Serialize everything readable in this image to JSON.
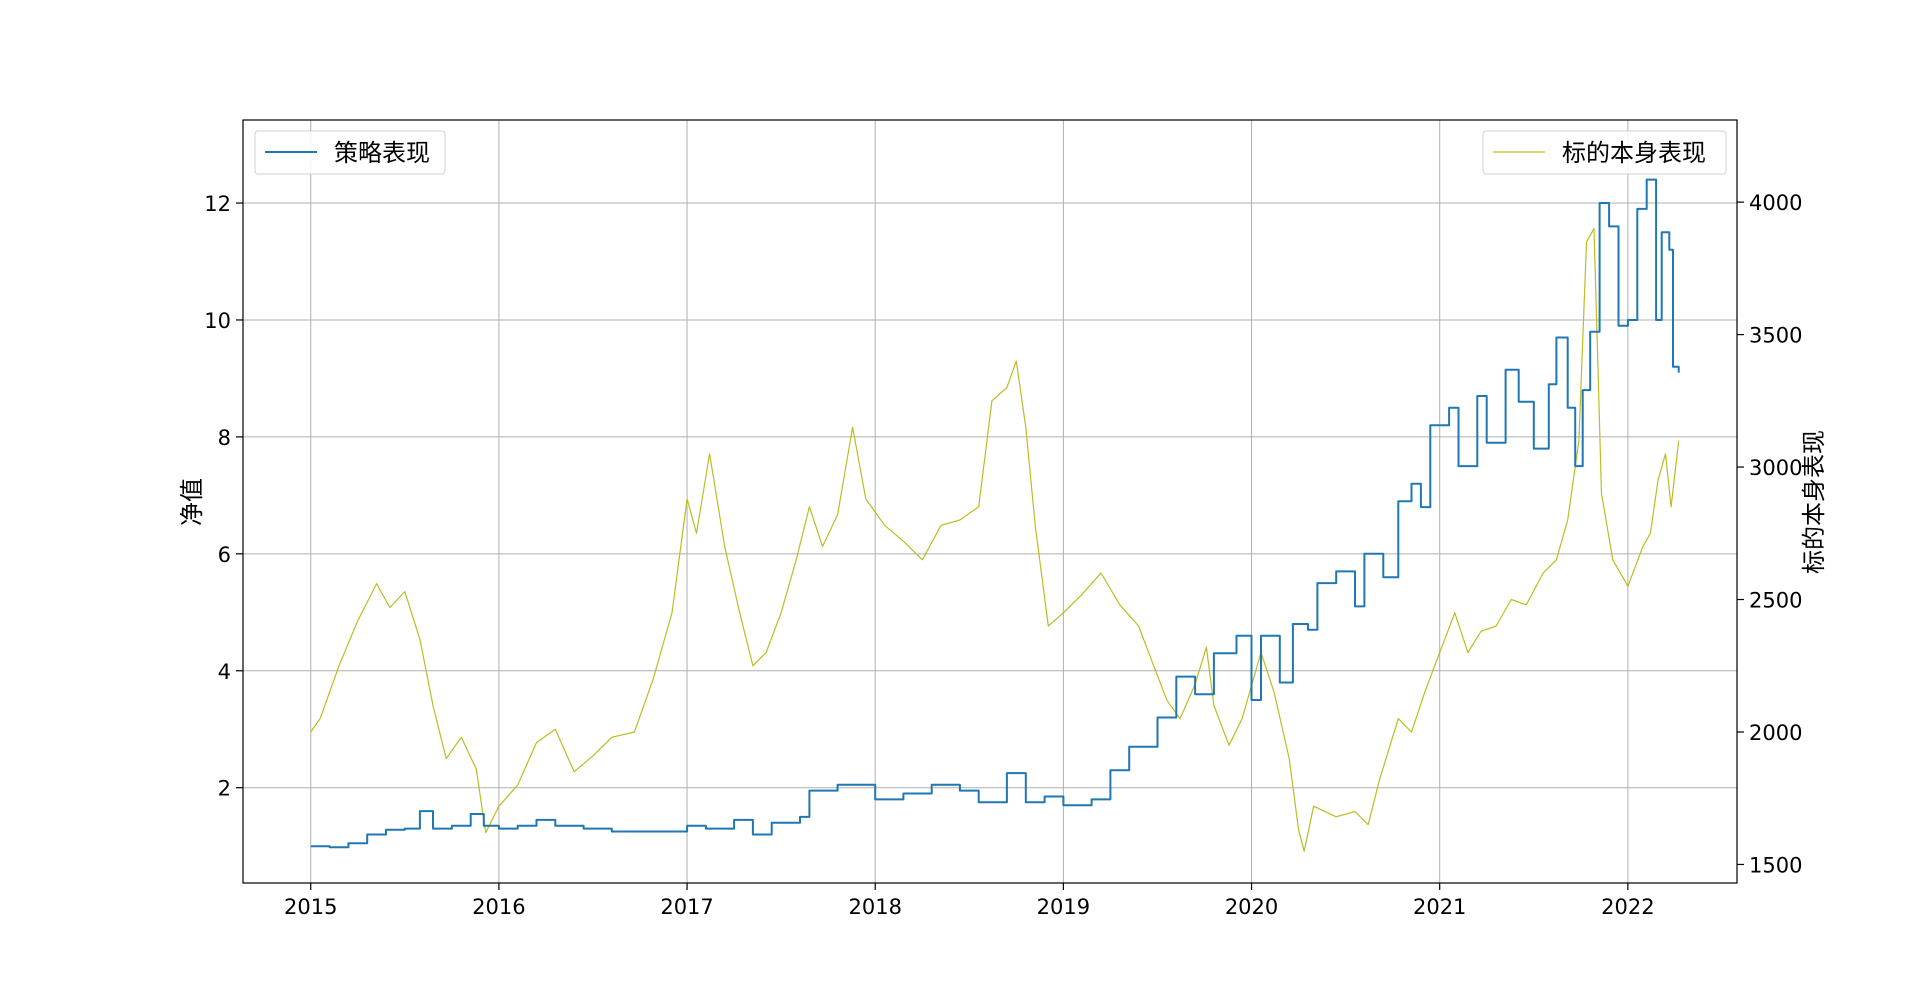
{
  "chart_data": {
    "type": "line",
    "title": "",
    "xlabel": "",
    "ylabel_left": "净值",
    "ylabel_right": "标的本身表现",
    "x_ticks": [
      "2015",
      "2016",
      "2017",
      "2018",
      "2019",
      "2020",
      "2021",
      "2022"
    ],
    "x_range": [
      2014.64,
      2022.58
    ],
    "y_left_ticks": [
      2,
      4,
      6,
      8,
      10,
      12
    ],
    "y_left_range": [
      0.37,
      13.42
    ],
    "y_right_ticks": [
      1500,
      2000,
      2500,
      3000,
      3500,
      4000
    ],
    "y_right_range": [
      1430,
      4310
    ],
    "grid": true,
    "legend_left": {
      "position": "upper-left",
      "label": "策略表现"
    },
    "legend_right": {
      "position": "upper-right",
      "label": "标的本身表现"
    },
    "series": [
      {
        "name": "策略表现",
        "axis": "left",
        "color": "#1f77b4",
        "points": [
          [
            2015.0,
            1.0
          ],
          [
            2015.1,
            0.98
          ],
          [
            2015.2,
            1.05
          ],
          [
            2015.3,
            1.2
          ],
          [
            2015.4,
            1.28
          ],
          [
            2015.5,
            1.3
          ],
          [
            2015.58,
            1.6
          ],
          [
            2015.65,
            1.3
          ],
          [
            2015.75,
            1.35
          ],
          [
            2015.85,
            1.55
          ],
          [
            2015.92,
            1.35
          ],
          [
            2016.0,
            1.3
          ],
          [
            2016.1,
            1.35
          ],
          [
            2016.2,
            1.45
          ],
          [
            2016.3,
            1.35
          ],
          [
            2016.45,
            1.3
          ],
          [
            2016.6,
            1.25
          ],
          [
            2016.8,
            1.25
          ],
          [
            2017.0,
            1.35
          ],
          [
            2017.1,
            1.3
          ],
          [
            2017.25,
            1.45
          ],
          [
            2017.35,
            1.2
          ],
          [
            2017.45,
            1.4
          ],
          [
            2017.6,
            1.5
          ],
          [
            2017.65,
            1.95
          ],
          [
            2017.8,
            2.05
          ],
          [
            2018.0,
            1.8
          ],
          [
            2018.15,
            1.9
          ],
          [
            2018.3,
            2.05
          ],
          [
            2018.45,
            1.95
          ],
          [
            2018.55,
            1.75
          ],
          [
            2018.7,
            2.25
          ],
          [
            2018.8,
            1.75
          ],
          [
            2018.9,
            1.85
          ],
          [
            2019.0,
            1.7
          ],
          [
            2019.15,
            1.8
          ],
          [
            2019.25,
            2.3
          ],
          [
            2019.35,
            2.7
          ],
          [
            2019.5,
            3.2
          ],
          [
            2019.6,
            3.9
          ],
          [
            2019.7,
            3.6
          ],
          [
            2019.8,
            4.3
          ],
          [
            2019.92,
            4.6
          ],
          [
            2020.0,
            3.5
          ],
          [
            2020.05,
            4.6
          ],
          [
            2020.15,
            3.8
          ],
          [
            2020.22,
            4.8
          ],
          [
            2020.3,
            4.7
          ],
          [
            2020.35,
            5.5
          ],
          [
            2020.45,
            5.7
          ],
          [
            2020.55,
            5.1
          ],
          [
            2020.6,
            6.0
          ],
          [
            2020.7,
            5.6
          ],
          [
            2020.78,
            6.9
          ],
          [
            2020.85,
            7.2
          ],
          [
            2020.9,
            6.8
          ],
          [
            2020.95,
            8.2
          ],
          [
            2021.05,
            8.5
          ],
          [
            2021.1,
            7.5
          ],
          [
            2021.2,
            8.7
          ],
          [
            2021.25,
            7.9
          ],
          [
            2021.35,
            9.15
          ],
          [
            2021.42,
            8.6
          ],
          [
            2021.5,
            7.8
          ],
          [
            2021.58,
            8.9
          ],
          [
            2021.62,
            9.7
          ],
          [
            2021.68,
            8.5
          ],
          [
            2021.72,
            7.5
          ],
          [
            2021.76,
            8.8
          ],
          [
            2021.8,
            9.8
          ],
          [
            2021.85,
            12.0
          ],
          [
            2021.9,
            11.6
          ],
          [
            2021.95,
            9.9
          ],
          [
            2022.0,
            10.0
          ],
          [
            2022.05,
            11.9
          ],
          [
            2022.1,
            12.4
          ],
          [
            2022.15,
            10.0
          ],
          [
            2022.18,
            11.5
          ],
          [
            2022.22,
            11.2
          ],
          [
            2022.24,
            9.2
          ],
          [
            2022.27,
            9.1
          ]
        ]
      },
      {
        "name": "标的本身表现",
        "axis": "right",
        "color": "#bcbd22",
        "points": [
          [
            2015.0,
            2000
          ],
          [
            2015.05,
            2050
          ],
          [
            2015.15,
            2250
          ],
          [
            2015.25,
            2420
          ],
          [
            2015.35,
            2560
          ],
          [
            2015.42,
            2470
          ],
          [
            2015.5,
            2530
          ],
          [
            2015.58,
            2350
          ],
          [
            2015.65,
            2100
          ],
          [
            2015.72,
            1900
          ],
          [
            2015.8,
            1980
          ],
          [
            2015.88,
            1860
          ],
          [
            2015.93,
            1620
          ],
          [
            2016.0,
            1720
          ],
          [
            2016.1,
            1800
          ],
          [
            2016.2,
            1960
          ],
          [
            2016.3,
            2010
          ],
          [
            2016.4,
            1850
          ],
          [
            2016.5,
            1910
          ],
          [
            2016.6,
            1980
          ],
          [
            2016.72,
            2000
          ],
          [
            2016.82,
            2200
          ],
          [
            2016.92,
            2450
          ],
          [
            2017.0,
            2880
          ],
          [
            2017.05,
            2750
          ],
          [
            2017.12,
            3050
          ],
          [
            2017.2,
            2700
          ],
          [
            2017.28,
            2450
          ],
          [
            2017.35,
            2250
          ],
          [
            2017.42,
            2300
          ],
          [
            2017.5,
            2450
          ],
          [
            2017.58,
            2650
          ],
          [
            2017.65,
            2850
          ],
          [
            2017.72,
            2700
          ],
          [
            2017.8,
            2820
          ],
          [
            2017.88,
            3150
          ],
          [
            2017.95,
            2880
          ],
          [
            2018.05,
            2780
          ],
          [
            2018.15,
            2720
          ],
          [
            2018.25,
            2650
          ],
          [
            2018.35,
            2780
          ],
          [
            2018.45,
            2800
          ],
          [
            2018.55,
            2850
          ],
          [
            2018.62,
            3250
          ],
          [
            2018.7,
            3300
          ],
          [
            2018.75,
            3400
          ],
          [
            2018.8,
            3150
          ],
          [
            2018.85,
            2780
          ],
          [
            2018.92,
            2400
          ],
          [
            2019.0,
            2450
          ],
          [
            2019.1,
            2520
          ],
          [
            2019.2,
            2600
          ],
          [
            2019.3,
            2480
          ],
          [
            2019.4,
            2400
          ],
          [
            2019.48,
            2250
          ],
          [
            2019.55,
            2120
          ],
          [
            2019.62,
            2050
          ],
          [
            2019.7,
            2180
          ],
          [
            2019.76,
            2320
          ],
          [
            2019.8,
            2100
          ],
          [
            2019.88,
            1950
          ],
          [
            2019.95,
            2050
          ],
          [
            2020.05,
            2300
          ],
          [
            2020.12,
            2150
          ],
          [
            2020.2,
            1900
          ],
          [
            2020.25,
            1630
          ],
          [
            2020.28,
            1550
          ],
          [
            2020.33,
            1720
          ],
          [
            2020.45,
            1680
          ],
          [
            2020.55,
            1700
          ],
          [
            2020.62,
            1650
          ],
          [
            2020.68,
            1820
          ],
          [
            2020.78,
            2050
          ],
          [
            2020.85,
            2000
          ],
          [
            2020.92,
            2150
          ],
          [
            2021.0,
            2300
          ],
          [
            2021.08,
            2450
          ],
          [
            2021.15,
            2300
          ],
          [
            2021.22,
            2380
          ],
          [
            2021.3,
            2400
          ],
          [
            2021.38,
            2500
          ],
          [
            2021.46,
            2480
          ],
          [
            2021.55,
            2600
          ],
          [
            2021.62,
            2650
          ],
          [
            2021.68,
            2800
          ],
          [
            2021.74,
            3100
          ],
          [
            2021.78,
            3850
          ],
          [
            2021.82,
            3900
          ],
          [
            2021.86,
            2900
          ],
          [
            2021.92,
            2650
          ],
          [
            2022.0,
            2550
          ],
          [
            2022.08,
            2700
          ],
          [
            2022.12,
            2750
          ],
          [
            2022.16,
            2950
          ],
          [
            2022.2,
            3050
          ],
          [
            2022.23,
            2850
          ],
          [
            2022.27,
            3100
          ]
        ]
      }
    ]
  }
}
